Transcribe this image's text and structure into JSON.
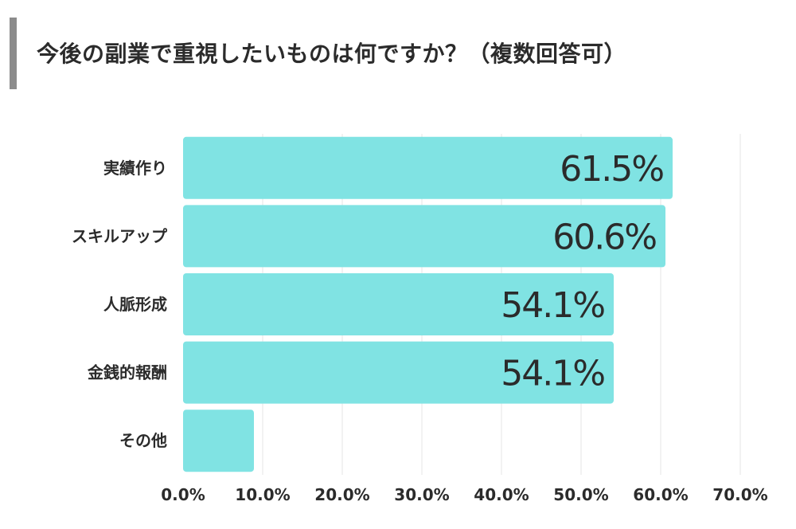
{
  "chart_data": {
    "type": "bar",
    "orientation": "horizontal",
    "title": "今後の副業で重視したいものは何ですか？（複数回答可）",
    "categories": [
      "実績作り",
      "スキルアップ",
      "人脈形成",
      "金銭的報酬",
      "その他"
    ],
    "values": [
      61.5,
      60.6,
      54.1,
      54.1,
      8.9
    ],
    "value_labels": [
      "61.5%",
      "60.6%",
      "54.1%",
      "54.1%",
      ""
    ],
    "x_ticks": [
      "0.0%",
      "10.0%",
      "20.0%",
      "30.0%",
      "40.0%",
      "50.0%",
      "60.0%",
      "70.0%"
    ],
    "xlim": [
      0,
      70
    ],
    "grid": true,
    "bar_color": "#80e3e3",
    "grid_color": "#e6e6e6",
    "text_color": "#2b2b2b"
  }
}
